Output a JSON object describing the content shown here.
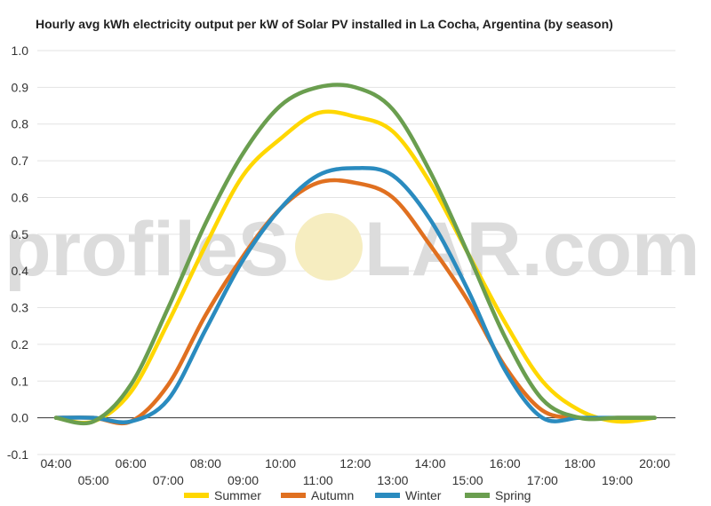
{
  "watermark": {
    "left": "profileS",
    "right": "LAR.com"
  },
  "chart_data": {
    "type": "line",
    "title": "Hourly avg kWh electricity output per kW of Solar PV installed in La Cocha, Argentina (by season)",
    "xlabel": "",
    "ylabel": "",
    "ylim": [
      -0.1,
      1.0
    ],
    "yticks": [
      "-0.1",
      "0.0",
      "0.1",
      "0.2",
      "0.3",
      "0.4",
      "0.5",
      "0.6",
      "0.7",
      "0.8",
      "0.9",
      "1.0"
    ],
    "x": [
      "04:00",
      "05:00",
      "06:00",
      "07:00",
      "08:00",
      "09:00",
      "10:00",
      "11:00",
      "12:00",
      "13:00",
      "14:00",
      "15:00",
      "16:00",
      "17:00",
      "18:00",
      "19:00",
      "20:00"
    ],
    "grid": true,
    "legend_position": "bottom",
    "series": [
      {
        "name": "Summer",
        "color": "#FFD700",
        "values": [
          0.0,
          -0.01,
          0.07,
          0.26,
          0.47,
          0.66,
          0.76,
          0.83,
          0.82,
          0.78,
          0.64,
          0.45,
          0.26,
          0.1,
          0.02,
          -0.01,
          0.0
        ]
      },
      {
        "name": "Autumn",
        "color": "#E07020",
        "values": [
          0.0,
          0.0,
          -0.01,
          0.09,
          0.28,
          0.44,
          0.57,
          0.64,
          0.64,
          0.6,
          0.47,
          0.32,
          0.14,
          0.02,
          0.0,
          0.0,
          0.0
        ]
      },
      {
        "name": "Winter",
        "color": "#2A8BBF",
        "values": [
          0.0,
          0.0,
          -0.01,
          0.05,
          0.24,
          0.43,
          0.57,
          0.66,
          0.68,
          0.66,
          0.54,
          0.35,
          0.13,
          0.0,
          0.0,
          0.0,
          0.0
        ]
      },
      {
        "name": "Spring",
        "color": "#6A9E4F",
        "values": [
          0.0,
          -0.01,
          0.09,
          0.3,
          0.53,
          0.72,
          0.85,
          0.9,
          0.9,
          0.84,
          0.67,
          0.45,
          0.22,
          0.05,
          0.0,
          0.0,
          0.0
        ]
      }
    ]
  }
}
